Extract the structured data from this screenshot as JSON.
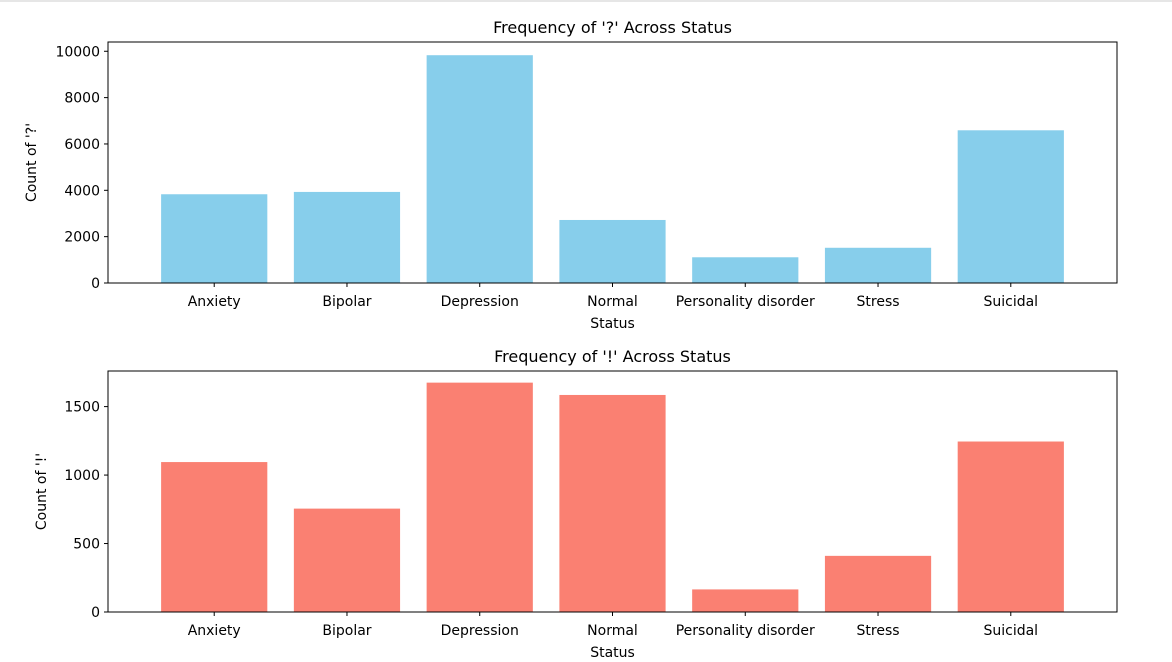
{
  "chart_data": [
    {
      "type": "bar",
      "title": "Frequency of '?' Across Status",
      "xlabel": "Status",
      "ylabel": "Count of '?'",
      "categories": [
        "Anxiety",
        "Bipolar",
        "Depression",
        "Normal",
        "Personality disorder",
        "Stress",
        "Suicidal"
      ],
      "values": [
        3830,
        3930,
        9830,
        2720,
        1110,
        1520,
        6590
      ],
      "ylim": [
        0,
        10400
      ],
      "yticks": [
        0,
        2000,
        4000,
        6000,
        8000,
        10000
      ],
      "color": "#87CEEB",
      "grid": false
    },
    {
      "type": "bar",
      "title": "Frequency of '!' Across Status",
      "xlabel": "Status",
      "ylabel": "Count of '!'",
      "categories": [
        "Anxiety",
        "Bipolar",
        "Depression",
        "Normal",
        "Personality disorder",
        "Stress",
        "Suicidal"
      ],
      "values": [
        1095,
        755,
        1675,
        1585,
        165,
        410,
        1245
      ],
      "ylim": [
        0,
        1760
      ],
      "yticks": [
        0,
        500,
        1000,
        1500
      ],
      "color": "#FA8072",
      "grid": false
    }
  ]
}
